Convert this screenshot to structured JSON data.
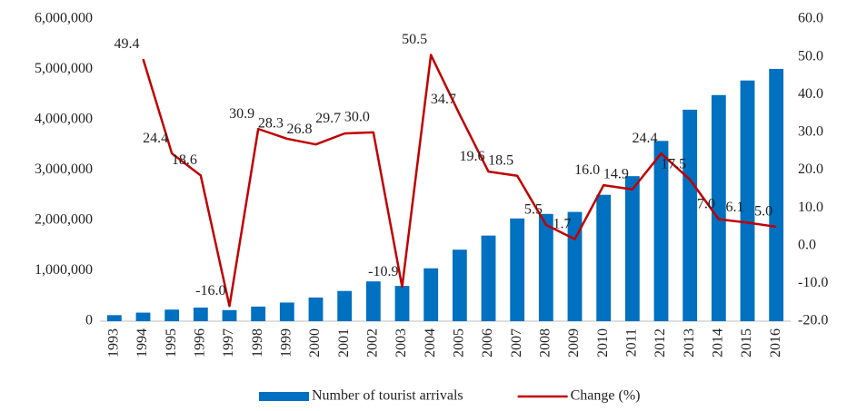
{
  "chart_data": {
    "type": "bar-line",
    "categories": [
      "1993",
      "1994",
      "1995",
      "1996",
      "1997",
      "1998",
      "1999",
      "2000",
      "2001",
      "2002",
      "2003",
      "2004",
      "2005",
      "2006",
      "2007",
      "2008",
      "2009",
      "2010",
      "2011",
      "2012",
      "2013",
      "2014",
      "2015",
      "2016"
    ],
    "series": [
      {
        "name": "Number of tourist arrivals",
        "type": "bar",
        "color": "#0070c0",
        "values": [
          120000,
          170000,
          230000,
          270000,
          220000,
          290000,
          370000,
          470000,
          600000,
          790000,
          700000,
          1050000,
          1420000,
          1700000,
          2040000,
          2130000,
          2170000,
          2510000,
          2880000,
          3580000,
          4200000,
          4490000,
          4780000,
          5010000
        ]
      },
      {
        "name": "Change (%)",
        "type": "line",
        "axis": "y2",
        "color": "#c00000",
        "values": [
          null,
          49.4,
          24.4,
          18.6,
          -16.0,
          30.9,
          28.3,
          26.8,
          29.7,
          30.0,
          -10.9,
          50.5,
          34.7,
          19.6,
          18.5,
          5.5,
          1.7,
          16.0,
          14.9,
          24.4,
          17.5,
          7.0,
          6.1,
          5.0
        ],
        "value_labels": [
          null,
          "49.4",
          "24.4",
          "18.6",
          "-16.0",
          "30.9",
          "28.3",
          "26.8",
          "29.7",
          "30.0",
          "-10.9",
          "50.5",
          "34.7",
          "19.6",
          "18.5",
          "5.5",
          "1.7",
          "16.0",
          "14.9",
          "24.4",
          "17.5",
          "7.0",
          "6.1",
          "5.0"
        ]
      }
    ],
    "ylim": [
      0,
      6000000
    ],
    "yticks": [
      0,
      {
        "value": 1000000,
        "label": "1,000,000"
      },
      {
        "value": 2000000,
        "label": "2,000,000"
      },
      {
        "value": 3000000,
        "label": "3,000,000"
      },
      {
        "value": 4000000,
        "label": "4,000,000"
      },
      {
        "value": 5000000,
        "label": "5,000,000"
      },
      {
        "value": 6000000,
        "label": "6,000,000"
      }
    ],
    "y2lim": [
      -20,
      60
    ],
    "y2ticks": [
      {
        "value": -20,
        "label": "-20.0"
      },
      {
        "value": -10,
        "label": "-10.0"
      },
      {
        "value": 0,
        "label": "0.0"
      },
      {
        "value": 10,
        "label": "10.0"
      },
      {
        "value": 20,
        "label": "20.0"
      },
      {
        "value": 30,
        "label": "30.0"
      },
      {
        "value": 40,
        "label": "40.0"
      },
      {
        "value": 50,
        "label": "50.0"
      },
      {
        "value": 60,
        "label": "60.0"
      }
    ],
    "grid": false,
    "legend": "bottom"
  }
}
